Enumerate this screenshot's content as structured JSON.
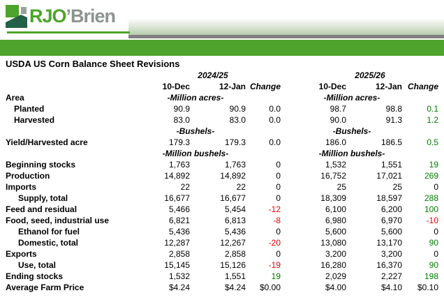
{
  "logo": {
    "text_green": "RJO",
    "text_gray": "’Brien"
  },
  "colors": {
    "brand_green": "#4da32b",
    "logo_dark_green": "#265f48",
    "logo_gray": "#8c9491",
    "icon_gray": "#98a09c",
    "banner_gray": "#7f7f7f",
    "gradient_tint": "#b9cdae",
    "value_colors": {
      "k": "#000000",
      "g": "#007d00",
      "r": "#e80000"
    }
  },
  "title": "USDA US Corn Balance Sheet Revisions",
  "table": {
    "groups": [
      {
        "year": "2024/25"
      },
      {
        "year": "2025/26"
      }
    ],
    "col_headers": [
      "10-Dec",
      "12-Jan",
      "Change"
    ],
    "rows": [
      {
        "type": "units",
        "label": "Area",
        "indent": 0,
        "units": "-Million acres-"
      },
      {
        "type": "data",
        "label": "Planted",
        "indent": 1,
        "cells": [
          [
            "90.9",
            "k"
          ],
          [
            "90.9",
            "k"
          ],
          [
            "0.0",
            "k"
          ],
          [
            "98.7",
            "k"
          ],
          [
            "98.8",
            "k"
          ],
          [
            "0.1",
            "g"
          ]
        ]
      },
      {
        "type": "data",
        "label": "Harvested",
        "indent": 1,
        "cells": [
          [
            "83.0",
            "k"
          ],
          [
            "83.0",
            "k"
          ],
          [
            "0.0",
            "k"
          ],
          [
            "90.0",
            "k"
          ],
          [
            "91.3",
            "k"
          ],
          [
            "1.2",
            "g"
          ]
        ]
      },
      {
        "type": "units",
        "label": "",
        "indent": 0,
        "units": "-Bushels-"
      },
      {
        "type": "data",
        "label": "Yield/Harvested acre",
        "indent": 0,
        "cells": [
          [
            "179.3",
            "k"
          ],
          [
            "179.3",
            "k"
          ],
          [
            "0.0",
            "k"
          ],
          [
            "186.0",
            "k"
          ],
          [
            "186.5",
            "k"
          ],
          [
            "0.5",
            "g"
          ]
        ]
      },
      {
        "type": "units",
        "label": "",
        "indent": 0,
        "units": "-Million bushels-"
      },
      {
        "type": "data",
        "label": "Beginning stocks",
        "indent": 0,
        "cells": [
          [
            "1,763",
            "k"
          ],
          [
            "1,763",
            "k"
          ],
          [
            "0",
            "k"
          ],
          [
            "1,532",
            "k"
          ],
          [
            "1,551",
            "k"
          ],
          [
            "19",
            "g"
          ]
        ]
      },
      {
        "type": "data",
        "label": "Production",
        "indent": 0,
        "cells": [
          [
            "14,892",
            "k"
          ],
          [
            "14,892",
            "k"
          ],
          [
            "0",
            "k"
          ],
          [
            "16,752",
            "k"
          ],
          [
            "17,021",
            "k"
          ],
          [
            "269",
            "g"
          ]
        ]
      },
      {
        "type": "data",
        "label": "Imports",
        "indent": 0,
        "cells": [
          [
            "22",
            "k"
          ],
          [
            "22",
            "k"
          ],
          [
            "0",
            "k"
          ],
          [
            "25",
            "k"
          ],
          [
            "25",
            "k"
          ],
          [
            "0",
            "k"
          ]
        ]
      },
      {
        "type": "data",
        "label": "Supply, total",
        "indent": 2,
        "cells": [
          [
            "16,677",
            "k"
          ],
          [
            "16,677",
            "k"
          ],
          [
            "0",
            "k"
          ],
          [
            "18,309",
            "k"
          ],
          [
            "18,597",
            "k"
          ],
          [
            "288",
            "g"
          ]
        ]
      },
      {
        "type": "data",
        "label": "Feed and residual",
        "indent": 0,
        "cells": [
          [
            "5,466",
            "k"
          ],
          [
            "5,454",
            "k"
          ],
          [
            "-12",
            "r"
          ],
          [
            "6,100",
            "k"
          ],
          [
            "6,200",
            "k"
          ],
          [
            "100",
            "g"
          ]
        ]
      },
      {
        "type": "data",
        "label": "Food, seed, industrial use",
        "indent": 0,
        "cells": [
          [
            "6,821",
            "k"
          ],
          [
            "6,813",
            "k"
          ],
          [
            "-8",
            "r"
          ],
          [
            "6,980",
            "k"
          ],
          [
            "6,970",
            "k"
          ],
          [
            "-10",
            "r"
          ]
        ]
      },
      {
        "type": "data",
        "label": "Ethanol for fuel",
        "indent": 2,
        "cells": [
          [
            "5,436",
            "k"
          ],
          [
            "5,436",
            "k"
          ],
          [
            "0",
            "k"
          ],
          [
            "5,600",
            "k"
          ],
          [
            "5,600",
            "k"
          ],
          [
            "0",
            "k"
          ]
        ]
      },
      {
        "type": "data",
        "label": "Domestic, total",
        "indent": 2,
        "cells": [
          [
            "12,287",
            "k"
          ],
          [
            "12,267",
            "k"
          ],
          [
            "-20",
            "r"
          ],
          [
            "13,080",
            "k"
          ],
          [
            "13,170",
            "k"
          ],
          [
            "90",
            "g"
          ]
        ]
      },
      {
        "type": "data",
        "label": "Exports",
        "indent": 0,
        "cells": [
          [
            "2,858",
            "k"
          ],
          [
            "2,858",
            "k"
          ],
          [
            "0",
            "k"
          ],
          [
            "3,200",
            "k"
          ],
          [
            "3,200",
            "k"
          ],
          [
            "0",
            "k"
          ]
        ]
      },
      {
        "type": "data",
        "label": "Use, total",
        "indent": 2,
        "cells": [
          [
            "15,145",
            "k"
          ],
          [
            "15,126",
            "k"
          ],
          [
            "-19",
            "r"
          ],
          [
            "16,280",
            "k"
          ],
          [
            "16,370",
            "k"
          ],
          [
            "90",
            "g"
          ]
        ]
      },
      {
        "type": "data",
        "label": "Ending stocks",
        "indent": 0,
        "cells": [
          [
            "1,532",
            "k"
          ],
          [
            "1,551",
            "k"
          ],
          [
            "19",
            "g"
          ],
          [
            "2,029",
            "k"
          ],
          [
            "2,227",
            "k"
          ],
          [
            "198",
            "g"
          ]
        ]
      },
      {
        "type": "data",
        "label": "Average Farm Price",
        "indent": 0,
        "cells": [
          [
            "$4.24",
            "k"
          ],
          [
            "$4.24",
            "k"
          ],
          [
            "$0.00",
            "k"
          ],
          [
            "$4.00",
            "k"
          ],
          [
            "$4.10",
            "k"
          ],
          [
            "$0.10",
            "k"
          ]
        ]
      }
    ]
  }
}
